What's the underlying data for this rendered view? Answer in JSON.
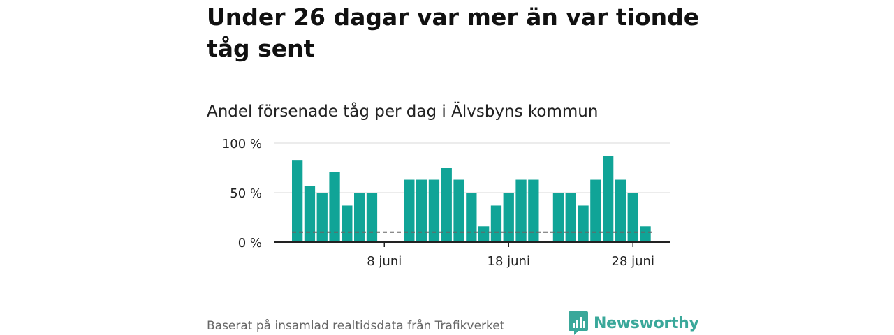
{
  "title": "Under 26 dagar var mer än var tionde tåg sent",
  "subtitle": "Andel försenade tåg per dag i Älvsbyns kommun",
  "footer": {
    "source": "Baserat på insamlad realtidsdata från Trafikverket",
    "brand": "Newsworthy"
  },
  "colors": {
    "bar": "#10a497",
    "grid": "#d9d9d9",
    "axis": "#222222",
    "reference_line": "#666666",
    "brand": "#3aa89a"
  },
  "chart_data": {
    "type": "bar",
    "x": [
      1,
      2,
      3,
      4,
      5,
      6,
      7,
      8,
      9,
      10,
      11,
      12,
      13,
      14,
      15,
      16,
      17,
      18,
      19,
      20,
      21,
      22,
      23,
      24,
      25,
      26,
      27,
      28,
      29,
      30
    ],
    "values": [
      83,
      57,
      50,
      71,
      37,
      50,
      50,
      null,
      null,
      63,
      63,
      63,
      75,
      63,
      50,
      16,
      37,
      50,
      63,
      63,
      null,
      50,
      50,
      37,
      63,
      87,
      63,
      50,
      16,
      null
    ],
    "x_tick_labels": [
      {
        "x": 8,
        "label": "8 juni"
      },
      {
        "x": 18,
        "label": "18 juni"
      },
      {
        "x": 28,
        "label": "28 juni"
      }
    ],
    "y_ticks": [
      {
        "value": 0,
        "label": "0 %"
      },
      {
        "value": 50,
        "label": "50 %"
      },
      {
        "value": 100,
        "label": "100 %"
      }
    ],
    "ylim": [
      0,
      100
    ],
    "reference_line": 10,
    "grid": true
  }
}
